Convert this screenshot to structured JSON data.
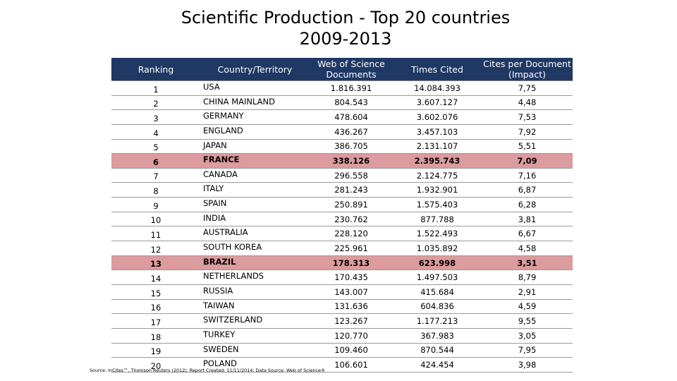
{
  "title": {
    "line1": "Scientific Production - Top 20 countries",
    "line2": "2009-2013"
  },
  "table": {
    "headers": {
      "ranking": "Ranking",
      "country": "Country/Territory",
      "documents": "Web of Science Documents",
      "times_cited": "Times Cited",
      "impact": "Cites per Document (Impact)"
    },
    "rows": [
      {
        "rank": "1",
        "country": "USA",
        "documents": "1.816.391",
        "times_cited": "14.084.393",
        "impact": "7,75",
        "highlight": false
      },
      {
        "rank": "2",
        "country": "CHINA MAINLAND",
        "documents": "804.543",
        "times_cited": "3.607.127",
        "impact": "4,48",
        "highlight": false
      },
      {
        "rank": "3",
        "country": "GERMANY",
        "documents": "478.604",
        "times_cited": "3.602.076",
        "impact": "7,53",
        "highlight": false
      },
      {
        "rank": "4",
        "country": "ENGLAND",
        "documents": "436.267",
        "times_cited": "3.457.103",
        "impact": "7,92",
        "highlight": false
      },
      {
        "rank": "5",
        "country": "JAPAN",
        "documents": "386.705",
        "times_cited": "2.131.107",
        "impact": "5,51",
        "highlight": false
      },
      {
        "rank": "6",
        "country": "FRANCE",
        "documents": "338.126",
        "times_cited": "2.395.743",
        "impact": "7,09",
        "highlight": true
      },
      {
        "rank": "7",
        "country": "CANADA",
        "documents": "296.558",
        "times_cited": "2.124.775",
        "impact": "7,16",
        "highlight": false
      },
      {
        "rank": "8",
        "country": "ITALY",
        "documents": "281.243",
        "times_cited": "1.932.901",
        "impact": "6,87",
        "highlight": false
      },
      {
        "rank": "9",
        "country": "SPAIN",
        "documents": "250.891",
        "times_cited": "1.575.403",
        "impact": "6,28",
        "highlight": false
      },
      {
        "rank": "10",
        "country": "INDIA",
        "documents": "230.762",
        "times_cited": "877.788",
        "impact": "3,81",
        "highlight": false
      },
      {
        "rank": "11",
        "country": "AUSTRALIA",
        "documents": "228.120",
        "times_cited": "1.522.493",
        "impact": "6,67",
        "highlight": false
      },
      {
        "rank": "12",
        "country": "SOUTH KOREA",
        "documents": "225.961",
        "times_cited": "1.035.892",
        "impact": "4,58",
        "highlight": false
      },
      {
        "rank": "13",
        "country": "BRAZIL",
        "documents": "178.313",
        "times_cited": "623.998",
        "impact": "3,51",
        "highlight": true
      },
      {
        "rank": "14",
        "country": "NETHERLANDS",
        "documents": "170.435",
        "times_cited": "1.497.503",
        "impact": "8,79",
        "highlight": false
      },
      {
        "rank": "15",
        "country": "RUSSIA",
        "documents": "143.007",
        "times_cited": "415.684",
        "impact": "2,91",
        "highlight": false
      },
      {
        "rank": "16",
        "country": "TAIWAN",
        "documents": "131.636",
        "times_cited": "604.836",
        "impact": "4,59",
        "highlight": false
      },
      {
        "rank": "17",
        "country": "SWITZERLAND",
        "documents": "123.267",
        "times_cited": "1.177.213",
        "impact": "9,55",
        "highlight": false
      },
      {
        "rank": "18",
        "country": "TURKEY",
        "documents": "120.770",
        "times_cited": "367.983",
        "impact": "3,05",
        "highlight": false
      },
      {
        "rank": "19",
        "country": "SWEDEN",
        "documents": "109.460",
        "times_cited": "870.544",
        "impact": "7,95",
        "highlight": false
      },
      {
        "rank": "20",
        "country": "POLAND",
        "documents": "106.601",
        "times_cited": "424.454",
        "impact": "3,98",
        "highlight": false
      }
    ]
  },
  "source": "Source: InCites™, Thomson Reuters (2012). Report Created: 11/11/2014; Data Source: Web of Science®",
  "colors": {
    "header_bg": "#1f3864",
    "highlight_bg": "#dc9b9e"
  }
}
